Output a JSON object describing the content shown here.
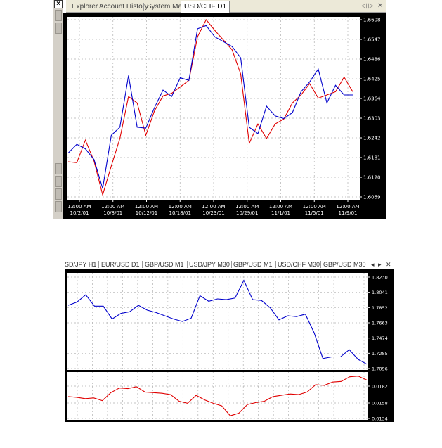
{
  "top_window": {
    "tabs": [
      "Explorer",
      "Account History",
      "System Mail",
      "USD/CHF D1"
    ],
    "active_tab": "USD/CHF D1",
    "nav_icons": [
      "prev-icon",
      "next-icon",
      "close-icon"
    ],
    "close_glyph": "×",
    "nav_prev": "◁",
    "nav_next": "▷",
    "nav_close": "✕"
  },
  "bottom_window": {
    "tabs": [
      "SD/JPY H1",
      "EUR/USD D1",
      "GBP/USD M1",
      "USD/JPY M30",
      "GBP/USD M1",
      "USD/CHF M30",
      "GBP/USD M30"
    ],
    "nav_prev": "◂",
    "nav_next": "▸",
    "nav_close": "✕"
  },
  "colors": {
    "frame": "#000000",
    "plot_bg": "#ffffff",
    "grid": "#b0b0b0",
    "blue_series": "#0000cc",
    "red_series": "#e00000"
  },
  "chart_data": [
    {
      "type": "line",
      "title": "USD/CHF D1",
      "y_ticks": [
        "1.6608",
        "1.6547",
        "1.6486",
        "1.6425",
        "1.6364",
        "1.6303",
        "1.6242",
        "1.6181",
        "1.6120",
        "1.6059"
      ],
      "ylim": [
        1.6059,
        1.6608
      ],
      "x_ticks": [
        {
          "time": "12:00 AM",
          "date": "10/2/01"
        },
        {
          "time": "12:00 AM",
          "date": "10/8/01"
        },
        {
          "time": "12:00 AM",
          "date": "10/12/01"
        },
        {
          "time": "12:00 AM",
          "date": "10/18/01"
        },
        {
          "time": "12:00 AM",
          "date": "10/23/01"
        },
        {
          "time": "12:00 AM",
          "date": "10/29/01"
        },
        {
          "time": "12:00 AM",
          "date": "11/1/01"
        },
        {
          "time": "12:00 AM",
          "date": "11/5/01"
        },
        {
          "time": "12:00 AM",
          "date": "11/9/01"
        }
      ],
      "series": [
        {
          "color": "blue",
          "values": [
            1.6195,
            1.6222,
            1.6208,
            1.6175,
            1.6085,
            1.625,
            1.6275,
            1.6435,
            1.6275,
            1.6272,
            1.6335,
            1.639,
            1.637,
            1.6428,
            1.642,
            1.658,
            1.659,
            1.6555,
            1.654,
            1.6525,
            1.649,
            1.6275,
            1.6255,
            1.634,
            1.631,
            1.6302,
            1.632,
            1.6385,
            1.6415,
            1.6455,
            1.635,
            1.6405,
            1.6375,
            1.6375
          ]
        },
        {
          "color": "red",
          "values": [
            1.6168,
            1.6165,
            1.6235,
            1.617,
            1.6065,
            1.6155,
            1.624,
            1.637,
            1.635,
            1.625,
            1.6325,
            1.6372,
            1.638,
            1.64,
            1.642,
            1.6555,
            1.6608,
            1.6575,
            1.6545,
            1.6515,
            1.644,
            1.6225,
            1.6285,
            1.624,
            1.6285,
            1.63,
            1.635,
            1.6375,
            1.641,
            1.6365,
            1.6375,
            1.6385,
            1.643,
            1.6385
          ]
        }
      ]
    },
    {
      "type": "line",
      "title": "GBP/USD",
      "panels": [
        {
          "y_ticks": [
            "1.8230",
            "1.8041",
            "1.7852",
            "1.7663",
            "1.7474",
            "1.7285",
            "1.7096"
          ],
          "ylim": [
            1.7096,
            1.823
          ],
          "series": [
            {
              "color": "blue",
              "values": [
                1.788,
                1.792,
                1.801,
                1.787,
                1.787,
                1.771,
                1.778,
                1.78,
                1.788,
                1.782,
                1.779,
                1.775,
                1.771,
                1.768,
                1.772,
                1.8,
                1.793,
                1.796,
                1.795,
                1.797,
                1.819,
                1.795,
                1.794,
                1.785,
                1.77,
                1.775,
                1.774,
                1.777,
                1.754,
                1.722,
                1.724,
                1.724,
                1.733,
                1.721,
                1.715
              ]
            }
          ]
        },
        {
          "y_ticks": [
            "0.0182",
            "0.0158",
            "0.0134"
          ],
          "ylim": [
            0.0132,
            0.02
          ],
          "series": [
            {
              "color": "red",
              "values": [
                0.0165,
                0.0164,
                0.0162,
                0.0163,
                0.0159,
                0.0171,
                0.0178,
                0.0177,
                0.018,
                0.0172,
                0.0171,
                0.017,
                0.0168,
                0.0158,
                0.0155,
                0.0167,
                0.016,
                0.0155,
                0.0151,
                0.0136,
                0.014,
                0.0153,
                0.0156,
                0.0158,
                0.0165,
                0.0167,
                0.0169,
                0.0168,
                0.0172,
                0.0183,
                0.0182,
                0.0187,
                0.0188,
                0.0195,
                0.0196,
                0.019
              ]
            }
          ]
        }
      ]
    }
  ]
}
